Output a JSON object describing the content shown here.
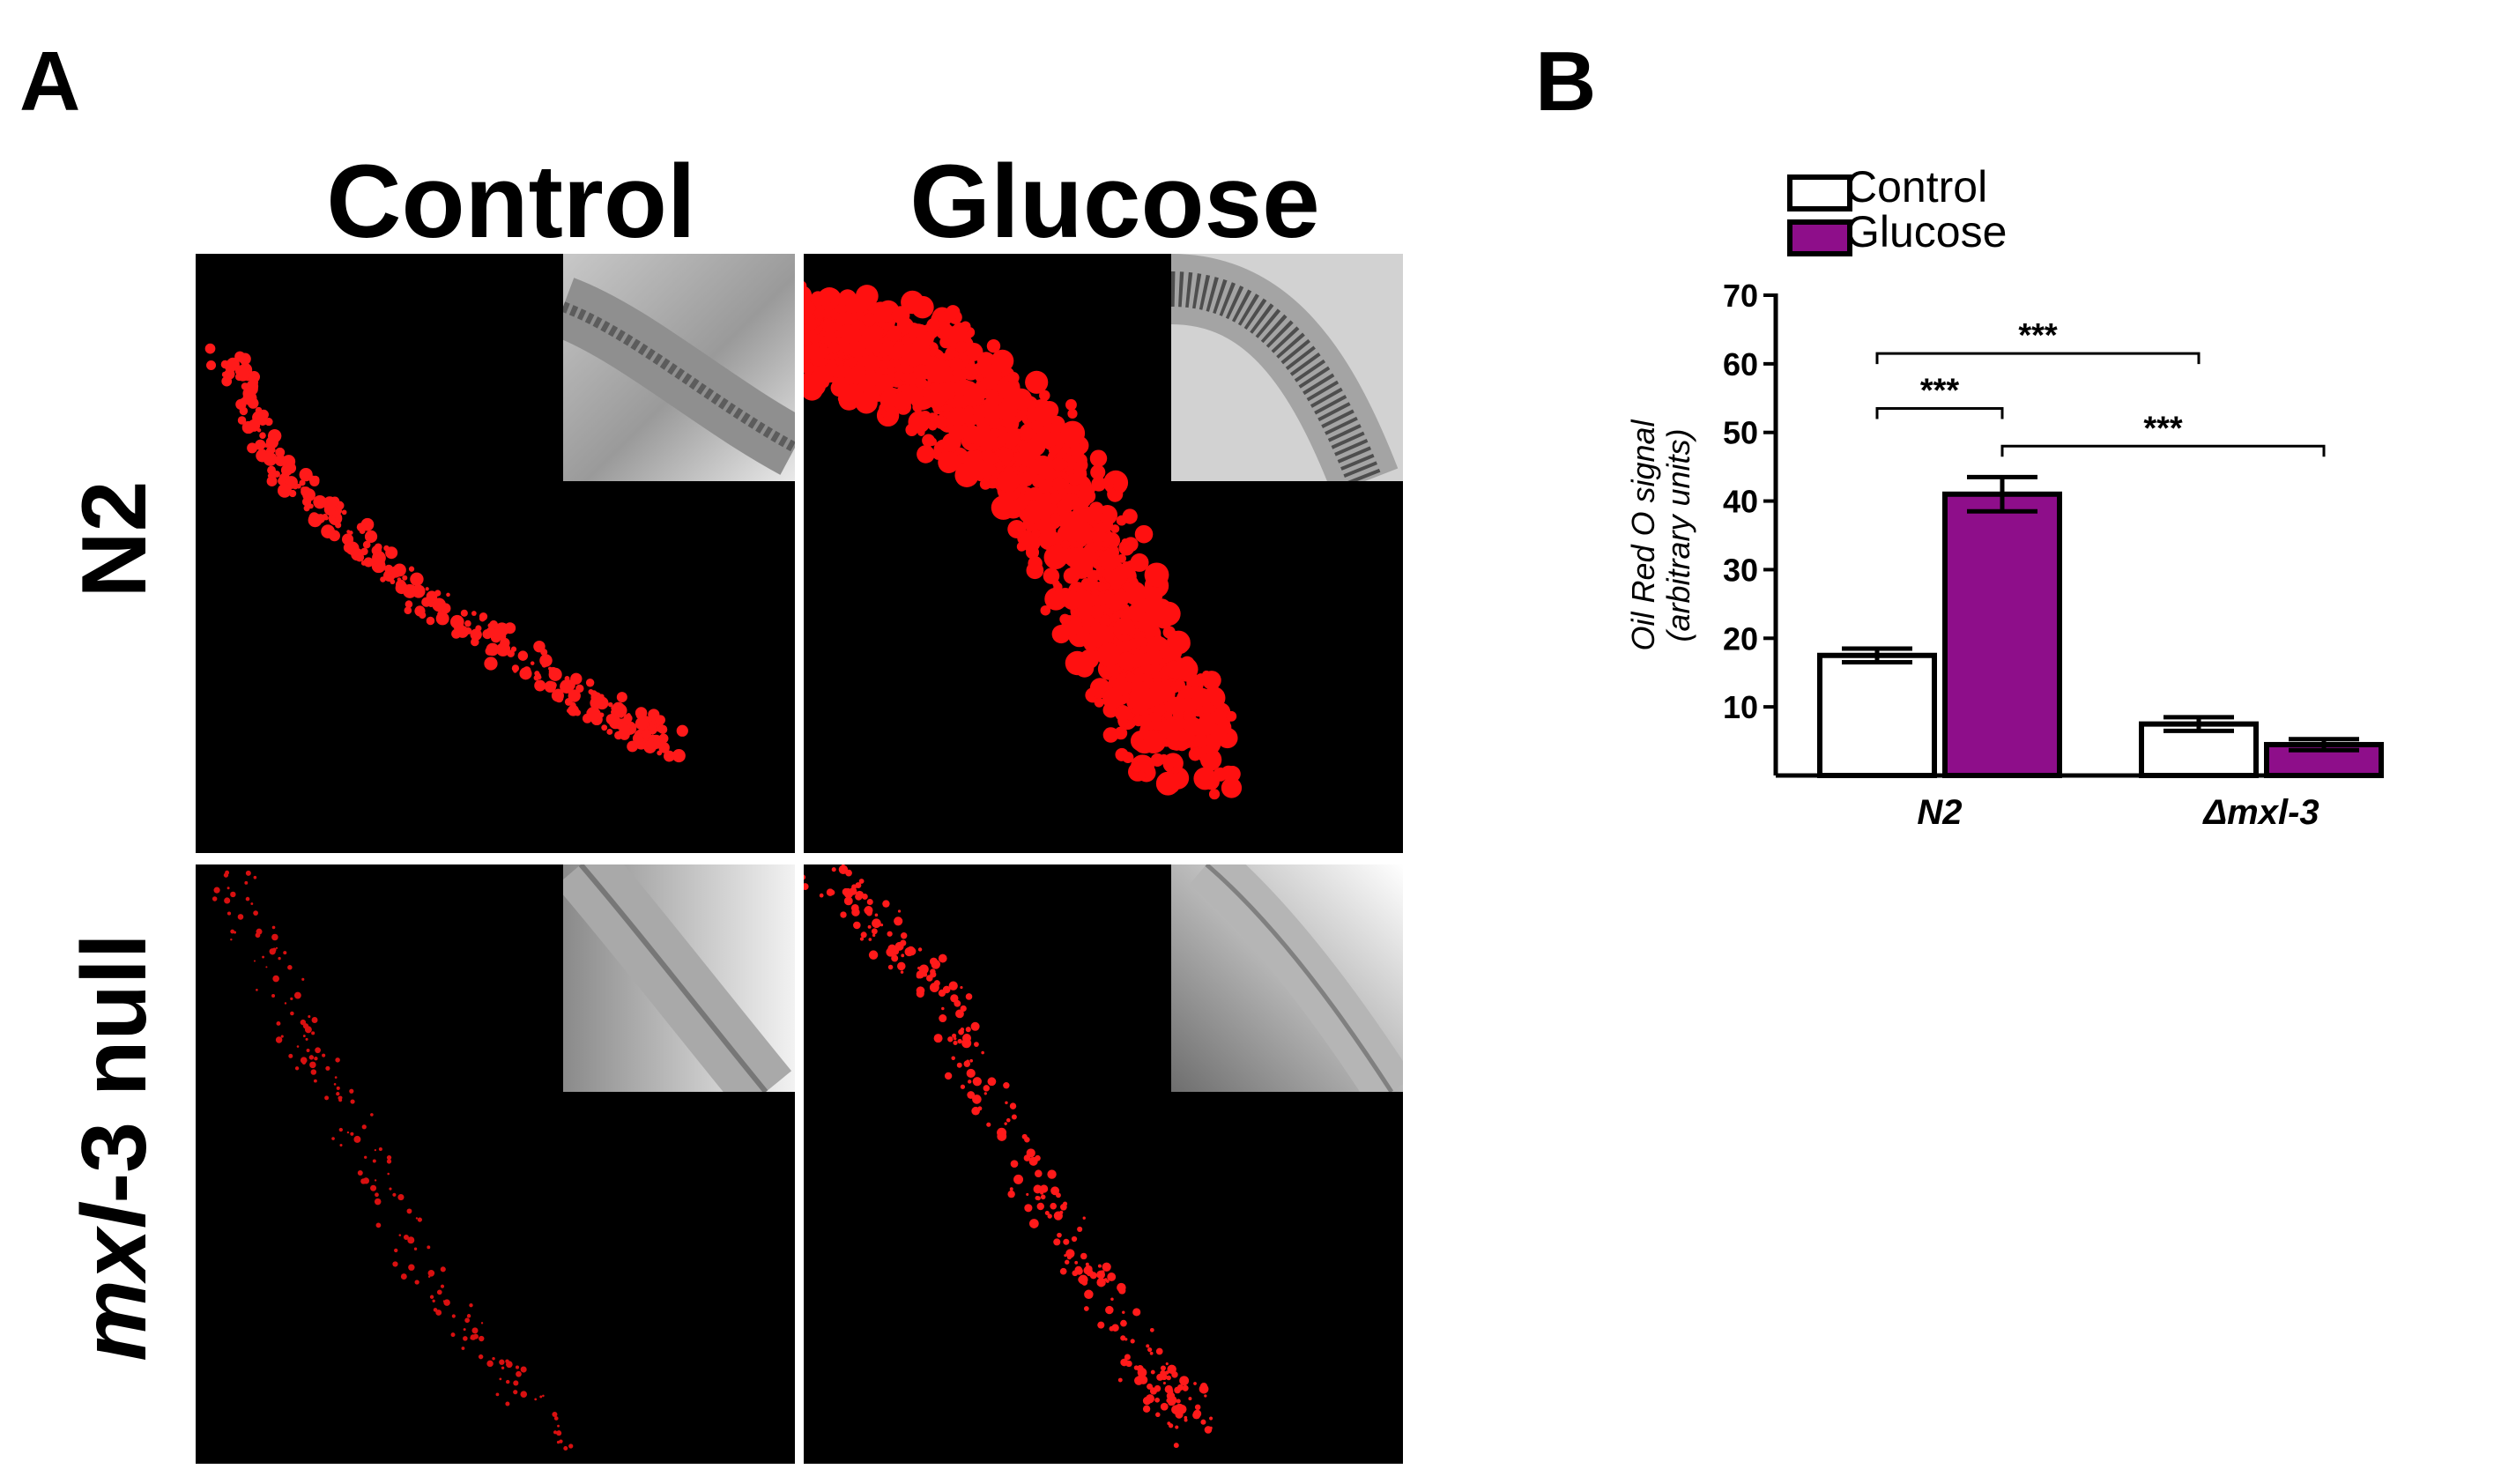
{
  "panel_a": {
    "label": "A",
    "columns": [
      "Control",
      "Glucose"
    ],
    "rows": [
      {
        "prefix": "",
        "italic": "",
        "suffix": "N2"
      },
      {
        "prefix": "",
        "italic": "mxl",
        "suffix": "-3 null"
      }
    ]
  },
  "panel_b": {
    "label": "B",
    "legend": [
      {
        "label": "Control",
        "color": "#ffffff"
      },
      {
        "label": "Glucose",
        "color": "#8e0e8a"
      }
    ]
  },
  "chart_data": {
    "type": "bar",
    "title": "",
    "xlabel": "",
    "ylabel": "Oil Red O signal (arbitrary units)",
    "ylabel_lines": [
      "Oil Red O signal",
      "(arbitrary units)"
    ],
    "categories": [
      "N2",
      "Δmxl-3"
    ],
    "series": [
      {
        "name": "Control",
        "color": "#ffffff",
        "values": [
          17.5,
          7.5
        ],
        "errors": [
          1.0,
          1.0
        ]
      },
      {
        "name": "Glucose",
        "color": "#8e0e8a",
        "values": [
          41,
          4.5
        ],
        "errors": [
          2.5,
          0.8
        ]
      }
    ],
    "yticks": [
      10,
      20,
      30,
      40,
      50,
      60,
      70
    ],
    "ylim": [
      0,
      70
    ],
    "grid": false,
    "legend_position": "top-left",
    "significance": [
      {
        "from": "N2 Control",
        "to": "N2 Glucose",
        "label": "***"
      },
      {
        "from": "N2 Control",
        "to": "Δmxl-3 Control",
        "label": "***"
      },
      {
        "from": "N2 Glucose",
        "to": "Δmxl-3 Glucose",
        "label": "***"
      }
    ]
  }
}
